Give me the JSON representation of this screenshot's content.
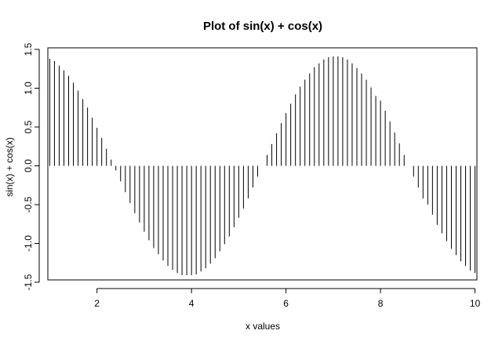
{
  "chart_data": {
    "type": "bar",
    "style": "vertical lines from zero (histogram-type plot)",
    "title": "Plot of sin(x) + cos(x)",
    "xlabel": "x values",
    "ylabel": "sin(x) + cos(x)",
    "xlim": [
      0.96,
      10.04
    ],
    "ylim": [
      -1.47,
      1.52
    ],
    "x_ticks": [
      2,
      4,
      6,
      8,
      10
    ],
    "x_tick_labels": [
      "2",
      "4",
      "6",
      "8",
      "10"
    ],
    "y_ticks": [
      -1.5,
      -1.0,
      -0.5,
      0.0,
      0.5,
      1.0,
      1.5
    ],
    "y_tick_labels": [
      "-1.5",
      "-1.0",
      "-0.5",
      "0.0",
      "0.5",
      "1.0",
      "1.5"
    ],
    "grid": false,
    "legend": "none",
    "line_color": "#000000",
    "series": [
      {
        "x": [
          1.0,
          1.1,
          1.2,
          1.3,
          1.4,
          1.5,
          1.6,
          1.7,
          1.8,
          1.9,
          2.0,
          2.1,
          2.2,
          2.3,
          2.4,
          2.5,
          2.6,
          2.7,
          2.8,
          2.9,
          3.0,
          3.1,
          3.2,
          3.3,
          3.4,
          3.5,
          3.6,
          3.7,
          3.8,
          3.9,
          4.0,
          4.1,
          4.2,
          4.3,
          4.4,
          4.5,
          4.6,
          4.7,
          4.8,
          4.9,
          5.0,
          5.1,
          5.2,
          5.3,
          5.4,
          5.5,
          5.6,
          5.7,
          5.8,
          5.9,
          6.0,
          6.1,
          6.2,
          6.3,
          6.4,
          6.5,
          6.6,
          6.7,
          6.8,
          6.9,
          7.0,
          7.1,
          7.2,
          7.3,
          7.4,
          7.5,
          7.6,
          7.7,
          7.8,
          7.9,
          8.0,
          8.1,
          8.2,
          8.3,
          8.4,
          8.5,
          8.6,
          8.7,
          8.8,
          8.9,
          9.0,
          9.1,
          9.2,
          9.3,
          9.4,
          9.5,
          9.6,
          9.7,
          9.8,
          9.9,
          10.0
        ],
        "values": [
          1.38,
          1.35,
          1.29,
          1.23,
          1.16,
          1.07,
          0.97,
          0.86,
          0.75,
          0.62,
          0.49,
          0.36,
          0.22,
          0.08,
          -0.06,
          -0.2,
          -0.34,
          -0.48,
          -0.61,
          -0.73,
          -0.85,
          -0.96,
          -1.06,
          -1.14,
          -1.22,
          -1.29,
          -1.34,
          -1.38,
          -1.41,
          -1.41,
          -1.41,
          -1.4,
          -1.36,
          -1.32,
          -1.26,
          -1.19,
          -1.1,
          -1.01,
          -0.91,
          -0.79,
          -0.67,
          -0.55,
          -0.42,
          -0.28,
          -0.14,
          -0.0,
          0.14,
          0.28,
          0.42,
          0.55,
          0.68,
          0.8,
          0.92,
          1.02,
          1.11,
          1.19,
          1.27,
          1.32,
          1.37,
          1.4,
          1.41,
          1.41,
          1.4,
          1.37,
          1.32,
          1.26,
          1.19,
          1.11,
          1.01,
          0.9,
          0.84,
          0.71,
          0.57,
          0.43,
          0.29,
          0.14,
          0.0,
          -0.14,
          -0.28,
          -0.42,
          -0.5,
          -0.63,
          -0.76,
          -0.87,
          -0.97,
          -1.07,
          -1.15,
          -1.23,
          -1.29,
          -1.35,
          -1.38
        ]
      }
    ]
  }
}
